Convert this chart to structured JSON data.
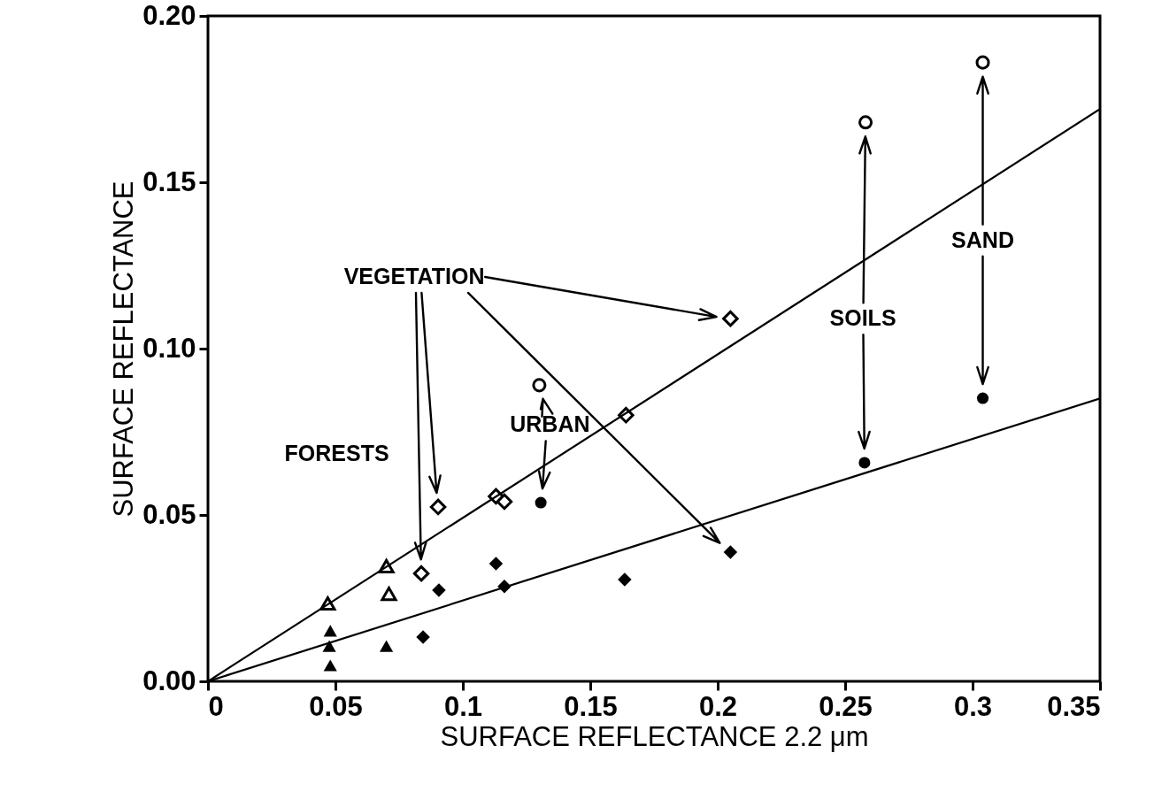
{
  "chart_data": {
    "type": "scatter",
    "xlabel": "SURFACE REFLECTANCE 2.2 μm",
    "ylabel": "SURFACE REFLECTANCE",
    "xlim": [
      0,
      0.35
    ],
    "ylim": [
      0,
      0.2
    ],
    "xticks": [
      0,
      0.05,
      0.1,
      0.15,
      0.2,
      0.25,
      0.3,
      0.35
    ],
    "yticks": [
      {
        "value": 0,
        "label": "0.00"
      },
      {
        "value": 0.05,
        "label": "0.05"
      },
      {
        "value": 0.1,
        "label": "0.10"
      },
      {
        "value": 0.15,
        "label": "0.15"
      },
      {
        "value": 0.2,
        "label": "0.20"
      }
    ],
    "grid": false,
    "series": [
      {
        "marker": "triangle",
        "color": "#000000",
        "x": [
          0.047,
          0.07,
          0.071
        ],
        "values": [
          0.0234,
          0.0346,
          0.0263
        ]
      },
      {
        "marker": "triangle",
        "color": "#000000",
        "x": [
          0.048,
          0.0476,
          0.048,
          0.07
        ],
        "values": [
          0.0152,
          0.0106,
          0.0048,
          0.0106
        ]
      },
      {
        "marker": "diamond",
        "color": "#000000",
        "x": [
          0.0903,
          0.0837,
          0.113,
          0.1163,
          0.164,
          0.205
        ],
        "values": [
          0.0524,
          0.0324,
          0.0556,
          0.054,
          0.08,
          0.109
        ]
      },
      {
        "marker": "diamond",
        "color": "#000000",
        "x": [
          0.0906,
          0.113,
          0.1163,
          0.1635,
          0.0844,
          0.205
        ],
        "values": [
          0.0274,
          0.0354,
          0.0285,
          0.0306,
          0.0133,
          0.0388
        ]
      },
      {
        "marker": "circle",
        "color": "#000000",
        "x": [
          0.13,
          0.258,
          0.304
        ],
        "values": [
          0.089,
          0.168,
          0.186
        ]
      },
      {
        "marker": "circle",
        "color": "#000000",
        "x": [
          0.1306,
          0.2576,
          0.304
        ],
        "values": [
          0.0537,
          0.0657,
          0.0851
        ]
      },
      {
        "type": "line",
        "color": "#000000",
        "x": [
          0,
          0.35
        ],
        "values": [
          0,
          0.172
        ]
      },
      {
        "type": "line",
        "color": "#000000",
        "x": [
          0,
          0.35
        ],
        "values": [
          0,
          0.085
        ]
      }
    ],
    "annotations": [
      "VEGETATION",
      "FORESTS",
      "URBAN",
      "SOILS",
      "SAND"
    ]
  }
}
